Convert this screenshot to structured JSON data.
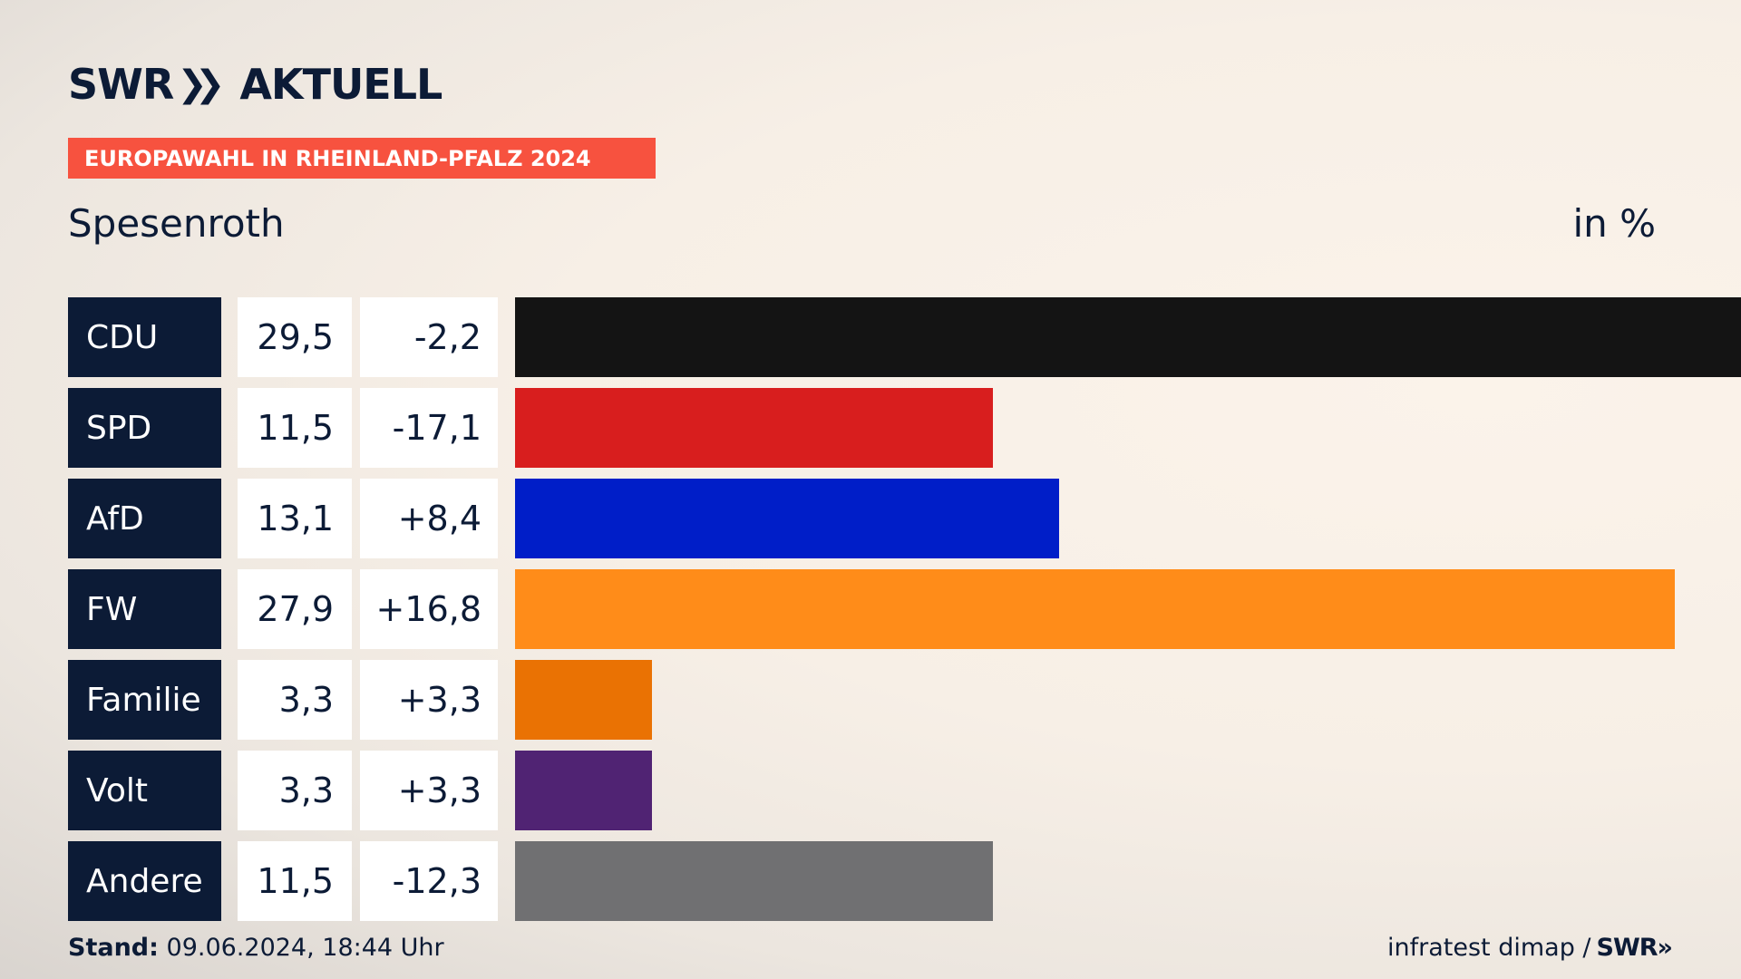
{
  "brand": {
    "name": "SWR",
    "chevrons": "»",
    "product": "AKTUELL"
  },
  "banner": {
    "text": "EUROPAWAHL IN RHEINLAND-PFALZ 2024",
    "color": "#f7523f"
  },
  "location": "Spesenroth",
  "unit_label": "in %",
  "footer": {
    "stand_label": "Stand:",
    "stand_value": "09.06.2024, 18:44 Uhr",
    "source": "infratest dimap /",
    "source_logo": "SWR»"
  },
  "chart_data": {
    "type": "bar",
    "orientation": "horizontal",
    "title": "Europawahl in Rheinland-Pfalz 2024 – Spesenroth",
    "unit": "in %",
    "xlim": [
      0,
      29.5
    ],
    "categories": [
      "CDU",
      "SPD",
      "AfD",
      "FW",
      "Familie",
      "Volt",
      "Andere"
    ],
    "values": [
      29.5,
      11.5,
      13.1,
      27.9,
      3.3,
      3.3,
      11.5
    ],
    "value_labels": [
      "29,5",
      "11,5",
      "13,1",
      "27,9",
      "3,3",
      "3,3",
      "11,5"
    ],
    "changes": [
      -2.2,
      -17.1,
      8.4,
      16.8,
      3.3,
      3.3,
      -12.3
    ],
    "change_labels": [
      "-2,2",
      "-17,1",
      "+8,4",
      "+16,8",
      "+3,3",
      "+3,3",
      "-12,3"
    ],
    "colors": [
      "#141414",
      "#d81e1e",
      "#001ec8",
      "#ff8c19",
      "#ea7203",
      "#502373",
      "#707072"
    ]
  }
}
